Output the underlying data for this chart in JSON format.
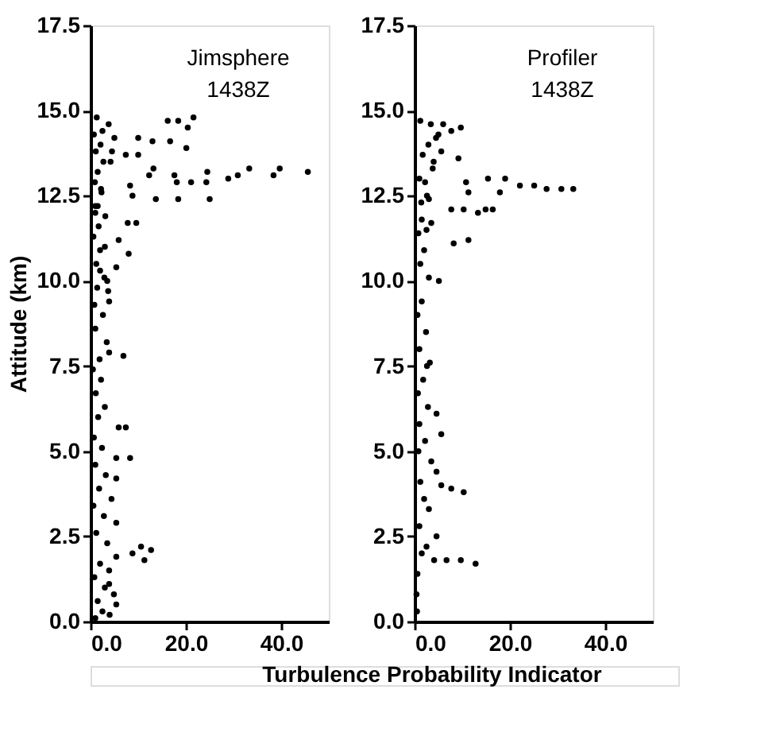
{
  "chart_data": [
    {
      "type": "scatter",
      "ylabel": "Attitude (km)",
      "xlabel": "Turbulence Probability Indicator",
      "annotations": [
        "Jimsphere",
        "1438Z"
      ],
      "marker": "circle",
      "grid": false,
      "xlim": [
        0,
        50
      ],
      "xticks": [
        {
          "value": 0,
          "label": "0.0"
        },
        {
          "value": 20,
          "label": "20.0"
        },
        {
          "value": 40,
          "label": "40.0"
        }
      ],
      "ylim": [
        0,
        17.5
      ],
      "yticks": [
        {
          "value": 0,
          "label": "0.0"
        },
        {
          "value": 2.5,
          "label": "2.5"
        },
        {
          "value": 5,
          "label": "5.0"
        },
        {
          "value": 7.5,
          "label": "7.5"
        },
        {
          "value": 10,
          "label": "10.0"
        },
        {
          "value": 12.5,
          "label": "12.5"
        },
        {
          "value": 15,
          "label": "15.0"
        },
        {
          "value": 17.5,
          "label": "17.5"
        }
      ],
      "series": [
        {
          "color": "#000000",
          "x": [
            16.2,
            18.4,
            21.6,
            20.4,
            16.7,
            20.1,
            13.0,
            10.0,
            10.0,
            7.4,
            13.2,
            17.6,
            21.1,
            18.1,
            24.5,
            24.3,
            28.9,
            30.9,
            33.3,
            38.4,
            39.7,
            45.6,
            12.3,
            13.7,
            18.4,
            25.0,
            8.8,
            8.3,
            7.8,
            9.6,
            8.0,
            5.9,
            5.4,
            3.7,
            3.9,
            6.9,
            3.9,
            7.4,
            5.9,
            8.3,
            5.4,
            5.4,
            4.4,
            5.4,
            12.7,
            10.6,
            8.8,
            11.3,
            5.4,
            3.9,
            4.9,
            5.4,
            3.9,
            1.0,
            2.5,
            4.0,
            1.5,
            3.0,
            0.8,
            2.0,
            3.5,
            1.2,
            2.8,
            0.6,
            1.8,
            3.2,
            1.0,
            2.4,
            0.7,
            1.6,
            3.0,
            1.1,
            2.2,
            0.5,
            1.9,
            3.4,
            1.0,
            2.6,
            0.8,
            1.4,
            2.9,
            1.2,
            2.0,
            0.6,
            1.7,
            3.1,
            1.0,
            2.3,
            0.9,
            1.5,
            2.7,
            1.1,
            2.1,
            0.7,
            3.8,
            1.3,
            2.5,
            4.5,
            1.0,
            3.0,
            2.0,
            4.2,
            1.5,
            3.5,
            5.0,
            2.2
          ],
          "values": [
            14.7,
            14.7,
            14.8,
            14.5,
            14.1,
            13.9,
            14.1,
            14.2,
            13.7,
            13.7,
            13.3,
            13.1,
            12.9,
            12.9,
            13.2,
            12.9,
            13.0,
            13.1,
            13.3,
            13.1,
            13.3,
            13.2,
            13.1,
            12.4,
            12.4,
            12.4,
            12.5,
            12.8,
            11.7,
            11.7,
            10.8,
            11.2,
            10.4,
            9.7,
            9.4,
            7.8,
            7.9,
            5.7,
            5.7,
            4.8,
            4.8,
            4.2,
            3.6,
            2.9,
            2.1,
            2.2,
            2.0,
            1.8,
            1.9,
            1.5,
            0.8,
            0.5,
            1.1,
            0.1,
            0.3,
            0.2,
            0.6,
            1.0,
            1.3,
            1.7,
            2.3,
            2.6,
            3.1,
            3.4,
            3.9,
            4.3,
            4.6,
            5.1,
            5.4,
            6.0,
            6.3,
            6.7,
            7.1,
            7.4,
            7.7,
            8.2,
            8.6,
            9.0,
            9.3,
            9.8,
            10.1,
            10.5,
            10.9,
            11.3,
            11.6,
            11.9,
            12.2,
            12.6,
            12.9,
            13.2,
            13.5,
            13.8,
            14.0,
            14.3,
            14.6,
            14.8,
            14.4,
            13.8,
            12.0,
            11.0,
            10.3,
            13.5,
            12.2,
            10.0,
            14.2,
            12.7
          ]
        }
      ]
    },
    {
      "type": "scatter",
      "annotations": [
        "Profiler",
        "1438Z"
      ],
      "marker": "circle",
      "grid": false,
      "xlim": [
        0,
        50
      ],
      "xticks": [
        {
          "value": 0,
          "label": "0.0"
        },
        {
          "value": 20,
          "label": "20.0"
        },
        {
          "value": 40,
          "label": "40.0"
        }
      ],
      "ylim": [
        0,
        17.5
      ],
      "yticks": [
        {
          "value": 0,
          "label": "0.0"
        },
        {
          "value": 2.5,
          "label": "2.5"
        },
        {
          "value": 5,
          "label": "5.0"
        },
        {
          "value": 7.5,
          "label": "7.5"
        },
        {
          "value": 10,
          "label": "10.0"
        },
        {
          "value": 12.5,
          "label": "12.5"
        },
        {
          "value": 15,
          "label": "15.0"
        },
        {
          "value": 17.5,
          "label": "17.5"
        }
      ],
      "series": [
        {
          "color": "#000000",
          "x": [
            33.3,
            30.8,
            27.7,
            25.1,
            22.1,
            19.0,
            17.9,
            15.4,
            10.8,
            11.3,
            7.7,
            10.3,
            13.3,
            16.4,
            14.9,
            11.3,
            8.2,
            9.2,
            9.7,
            7.7,
            5.6,
            5.1,
            2.6,
            4.6,
            5.6,
            4.6,
            10.3,
            7.7,
            5.6,
            12.8,
            9.7,
            6.7,
            4.1,
            4.6,
            0.5,
            0.4,
            0.6,
            1.5,
            2.5,
            1.0,
            3.0,
            2.0,
            1.2,
            3.5,
            0.8,
            2.2,
            1.0,
            2.8,
            0.7,
            1.8,
            3.2,
            1.0,
            2.4,
            0.6,
            1.5,
            3.0,
            1.2,
            2.0,
            0.8,
            3.5,
            1.4,
            2.6,
            1.0,
            3.8,
            1.7,
            2.9,
            4.5,
            1.2,
            3.4,
            2.2,
            5.0,
            1.5,
            4.0,
            2.5,
            6.0,
            3.0
          ],
          "values": [
            12.7,
            12.7,
            12.7,
            12.8,
            12.8,
            13.0,
            12.6,
            13.0,
            12.9,
            12.6,
            12.1,
            12.1,
            12.0,
            12.1,
            12.1,
            11.2,
            11.1,
            13.6,
            14.5,
            14.4,
            13.8,
            10.0,
            7.5,
            6.1,
            5.5,
            4.4,
            3.8,
            3.9,
            4.0,
            1.7,
            1.8,
            1.8,
            1.8,
            2.5,
            0.3,
            0.8,
            1.4,
            2.0,
            2.2,
            2.8,
            3.3,
            3.6,
            4.1,
            4.7,
            5.0,
            5.3,
            5.8,
            6.3,
            6.7,
            7.1,
            7.6,
            8.0,
            8.5,
            9.0,
            9.4,
            10.1,
            10.5,
            10.9,
            11.4,
            11.7,
            12.3,
            12.5,
            13.0,
            13.3,
            13.7,
            14.0,
            14.2,
            14.7,
            14.6,
            12.9,
            14.3,
            11.8,
            13.5,
            11.5,
            14.6,
            12.4
          ]
        }
      ]
    }
  ]
}
